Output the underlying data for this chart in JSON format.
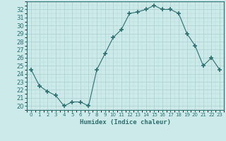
{
  "x": [
    0,
    1,
    2,
    3,
    4,
    5,
    6,
    7,
    8,
    9,
    10,
    11,
    12,
    13,
    14,
    15,
    16,
    17,
    18,
    19,
    20,
    21,
    22,
    23
  ],
  "y": [
    24.5,
    22.5,
    21.8,
    21.3,
    20.0,
    20.5,
    20.5,
    20.0,
    24.5,
    26.5,
    28.5,
    29.5,
    31.5,
    31.7,
    32.0,
    32.5,
    32.0,
    32.0,
    31.5,
    29.0,
    27.5,
    25.0,
    26.0,
    24.5
  ],
  "xlabel": "Humidex (Indice chaleur)",
  "xlim": [
    -0.5,
    23.5
  ],
  "ylim": [
    19.5,
    33.0
  ],
  "yticks": [
    20,
    21,
    22,
    23,
    24,
    25,
    26,
    27,
    28,
    29,
    30,
    31,
    32
  ],
  "xtick_labels": [
    "0",
    "1",
    "2",
    "3",
    "4",
    "5",
    "6",
    "7",
    "8",
    "9",
    "10",
    "11",
    "12",
    "13",
    "14",
    "15",
    "16",
    "17",
    "18",
    "19",
    "20",
    "21",
    "22",
    "23"
  ],
  "line_color": "#2e6e6e",
  "marker": "+",
  "marker_size": 4,
  "bg_color": "#cceaea",
  "grid_major_color": "#aacece",
  "grid_minor_color": "#bbdada"
}
